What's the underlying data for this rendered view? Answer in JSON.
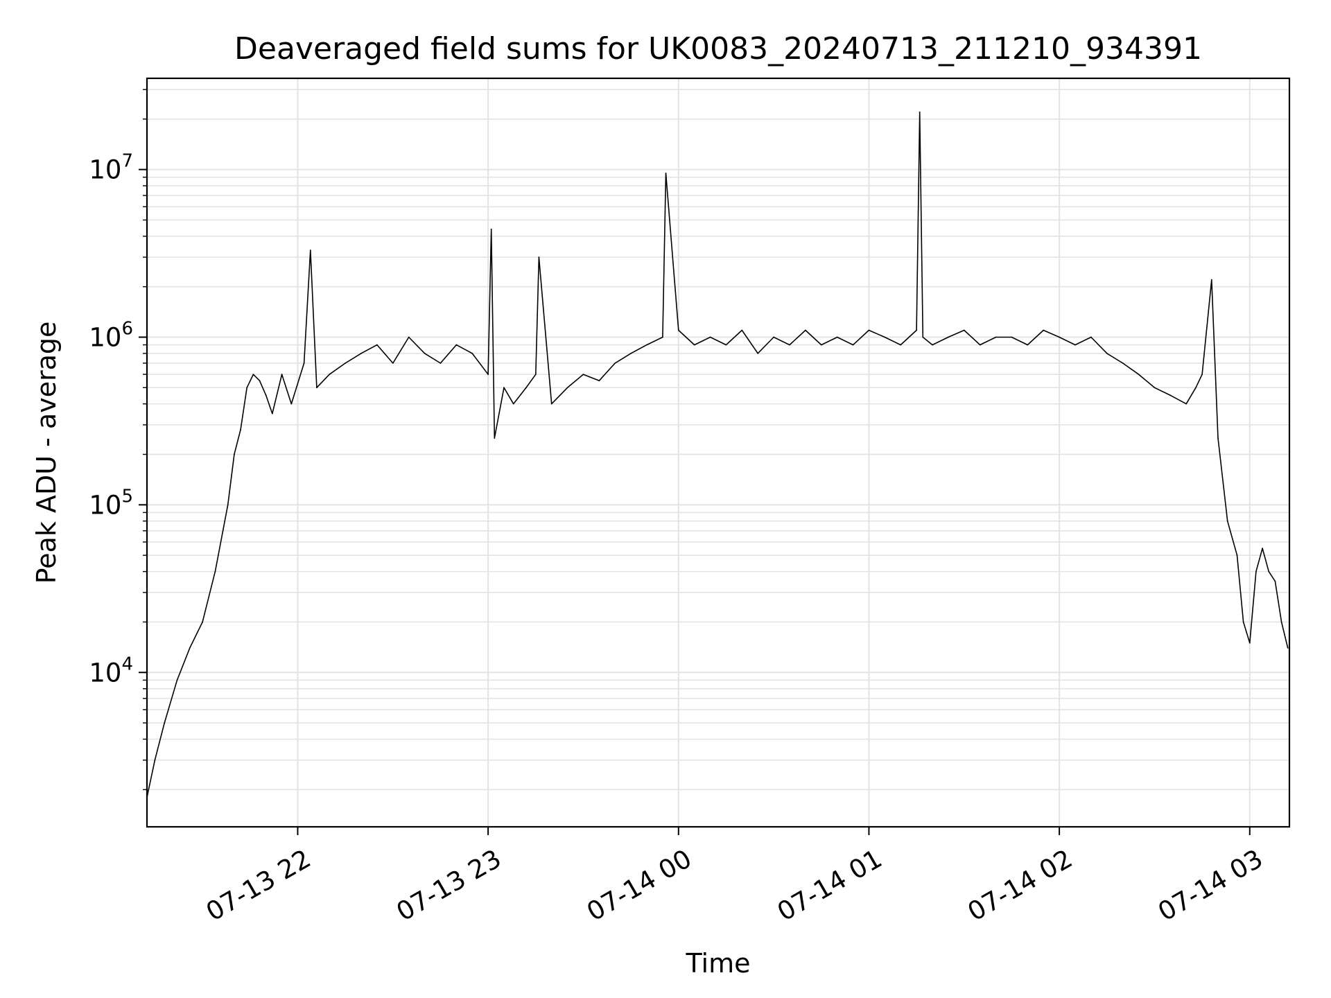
{
  "chart_data": {
    "type": "line",
    "title": "Deaveraged field sums for UK0083_20240713_211210_934391",
    "xlabel": "Time",
    "ylabel": "Peak ADU - average",
    "y_scale": "log",
    "ylim": [
      1200,
      35000000
    ],
    "xlim": [
      "2024-07-13 21:12:30",
      "2024-07-14 03:12:30"
    ],
    "grid": true,
    "line_color": "#000000",
    "x_ticks": [
      {
        "label": "07-13 22",
        "t": "2024-07-13 22:00"
      },
      {
        "label": "07-13 23",
        "t": "2024-07-13 23:00"
      },
      {
        "label": "07-14 00",
        "t": "2024-07-14 00:00"
      },
      {
        "label": "07-14 01",
        "t": "2024-07-14 01:00"
      },
      {
        "label": "07-14 02",
        "t": "2024-07-14 02:00"
      },
      {
        "label": "07-14 03",
        "t": "2024-07-14 03:00"
      }
    ],
    "y_ticks": [
      {
        "base": "10",
        "exp": "4",
        "value": 10000
      },
      {
        "base": "10",
        "exp": "5",
        "value": 100000
      },
      {
        "base": "10",
        "exp": "6",
        "value": 1000000
      },
      {
        "base": "10",
        "exp": "7",
        "value": 10000000
      }
    ],
    "series": [
      {
        "x": [
          "2024-07-13 21:12:30",
          "2024-07-13 21:15",
          "2024-07-13 21:18",
          "2024-07-13 21:22",
          "2024-07-13 21:26",
          "2024-07-13 21:30",
          "2024-07-13 21:34",
          "2024-07-13 21:38",
          "2024-07-13 21:40",
          "2024-07-13 21:42",
          "2024-07-13 21:44",
          "2024-07-13 21:46",
          "2024-07-13 21:48",
          "2024-07-13 21:50",
          "2024-07-13 21:52",
          "2024-07-13 21:55",
          "2024-07-13 21:58",
          "2024-07-13 22:02",
          "2024-07-13 22:04",
          "2024-07-13 22:06",
          "2024-07-13 22:10",
          "2024-07-13 22:15",
          "2024-07-13 22:20",
          "2024-07-13 22:25",
          "2024-07-13 22:30",
          "2024-07-13 22:35",
          "2024-07-13 22:40",
          "2024-07-13 22:45",
          "2024-07-13 22:50",
          "2024-07-13 22:55",
          "2024-07-13 23:00",
          "2024-07-13 23:01",
          "2024-07-13 23:02",
          "2024-07-13 23:05",
          "2024-07-13 23:08",
          "2024-07-13 23:12",
          "2024-07-13 23:15",
          "2024-07-13 23:16",
          "2024-07-13 23:20",
          "2024-07-13 23:25",
          "2024-07-13 23:30",
          "2024-07-13 23:35",
          "2024-07-13 23:40",
          "2024-07-13 23:45",
          "2024-07-13 23:50",
          "2024-07-13 23:55",
          "2024-07-13 23:56",
          "2024-07-14 00:00",
          "2024-07-14 00:05",
          "2024-07-14 00:10",
          "2024-07-14 00:15",
          "2024-07-14 00:20",
          "2024-07-14 00:25",
          "2024-07-14 00:30",
          "2024-07-14 00:35",
          "2024-07-14 00:40",
          "2024-07-14 00:45",
          "2024-07-14 00:50",
          "2024-07-14 00:55",
          "2024-07-14 01:00",
          "2024-07-14 01:05",
          "2024-07-14 01:10",
          "2024-07-14 01:15",
          "2024-07-14 01:16",
          "2024-07-14 01:17",
          "2024-07-14 01:20",
          "2024-07-14 01:25",
          "2024-07-14 01:30",
          "2024-07-14 01:35",
          "2024-07-14 01:40",
          "2024-07-14 01:45",
          "2024-07-14 01:50",
          "2024-07-14 01:55",
          "2024-07-14 02:00",
          "2024-07-14 02:05",
          "2024-07-14 02:10",
          "2024-07-14 02:15",
          "2024-07-14 02:20",
          "2024-07-14 02:25",
          "2024-07-14 02:30",
          "2024-07-14 02:35",
          "2024-07-14 02:40",
          "2024-07-14 02:43",
          "2024-07-14 02:45",
          "2024-07-14 02:48",
          "2024-07-14 02:50",
          "2024-07-14 02:53",
          "2024-07-14 02:56",
          "2024-07-14 02:58",
          "2024-07-14 03:00",
          "2024-07-14 03:02",
          "2024-07-14 03:04",
          "2024-07-14 03:06",
          "2024-07-14 03:08",
          "2024-07-14 03:10",
          "2024-07-14 03:12"
        ],
        "y": [
          1800,
          3000,
          5000,
          9000,
          14000,
          20000,
          40000,
          100000,
          200000,
          280000,
          500000,
          600000,
          550000,
          450000,
          350000,
          600000,
          400000,
          700000,
          3300000,
          500000,
          600000,
          700000,
          800000,
          900000,
          700000,
          1000000,
          800000,
          700000,
          900000,
          800000,
          600000,
          4400000,
          250000,
          500000,
          400000,
          500000,
          600000,
          3000000,
          400000,
          500000,
          600000,
          550000,
          700000,
          800000,
          900000,
          1000000,
          9500000,
          1100000,
          900000,
          1000000,
          900000,
          1100000,
          800000,
          1000000,
          900000,
          1100000,
          900000,
          1000000,
          900000,
          1100000,
          1000000,
          900000,
          1100000,
          22000000,
          1000000,
          900000,
          1000000,
          1100000,
          900000,
          1000000,
          1000000,
          900000,
          1100000,
          1000000,
          900000,
          1000000,
          800000,
          700000,
          600000,
          500000,
          450000,
          400000,
          500000,
          600000,
          2200000,
          250000,
          80000,
          50000,
          20000,
          15000,
          40000,
          55000,
          40000,
          35000,
          20000,
          14000
        ]
      }
    ]
  }
}
